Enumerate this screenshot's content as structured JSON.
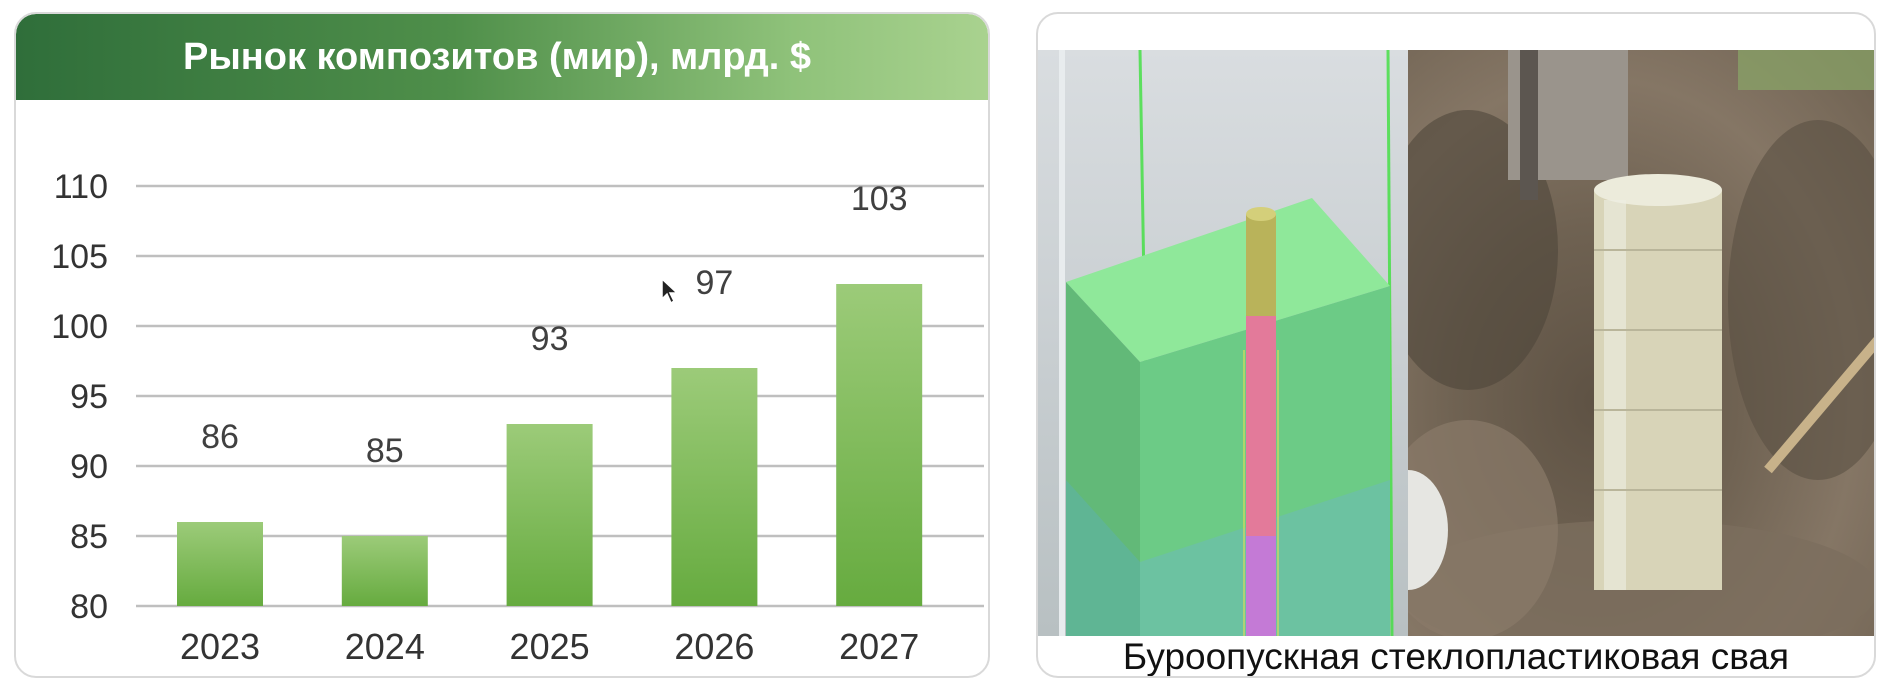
{
  "chart_data": {
    "type": "bar",
    "title": "Рынок композитов (мир), млрд. $",
    "categories": [
      "2023",
      "2024",
      "2025",
      "2026",
      "2027"
    ],
    "values": [
      86,
      85,
      93,
      97,
      103
    ],
    "data_labels": [
      "86",
      "85",
      "93",
      "97",
      "103"
    ],
    "ylim": [
      80,
      110
    ],
    "yticks": [
      80,
      85,
      90,
      95,
      100,
      105,
      110
    ],
    "xlabel": "",
    "ylabel": "",
    "grid": true,
    "legend": "none"
  },
  "photo_panel": {
    "caption": "Буроопускная стеклопластиковая свая"
  },
  "colors": {
    "bar_top": "#9ccb79",
    "bar_bottom": "#66ab3f",
    "grid": "#bfbfbf",
    "axis_text": "#333333",
    "label_text": "#404040"
  },
  "icons": {
    "cursor": "mouse-pointer-icon"
  }
}
